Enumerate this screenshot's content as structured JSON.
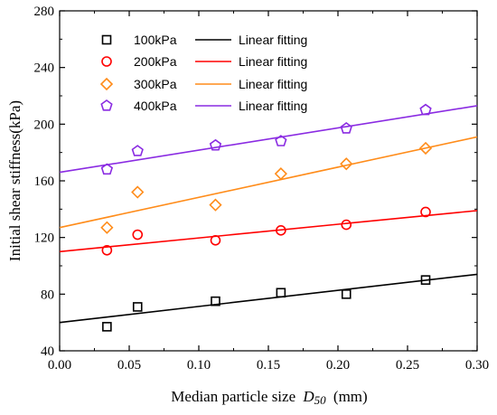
{
  "chart_data": {
    "type": "scatter",
    "title": "",
    "xlabel": "Median particle size",
    "xlabel_symbol": "D",
    "xlabel_subscript": "50",
    "xlabel_unit": "(mm)",
    "ylabel": "Initial shear stiffness(kPa)",
    "xlim": [
      0.0,
      0.3
    ],
    "ylim": [
      40,
      280
    ],
    "x_ticks": [
      "0.00",
      "0.05",
      "0.10",
      "0.15",
      "0.20",
      "0.25",
      "0.30"
    ],
    "y_ticks": [
      "40",
      "80",
      "120",
      "160",
      "200",
      "240",
      "280"
    ],
    "grid": false,
    "legend_position": "top-left",
    "series": [
      {
        "name": "100kPa",
        "fit_label": "Linear fitting",
        "marker": "square",
        "color": "#000000",
        "x": [
          0.034,
          0.056,
          0.112,
          0.159,
          0.206,
          0.263
        ],
        "y": [
          57,
          71,
          75,
          81,
          80,
          90
        ],
        "fit": {
          "intercept": 60,
          "end_value": 94
        }
      },
      {
        "name": "200kPa",
        "fit_label": "Linear fitting",
        "marker": "circle",
        "color": "#ff0000",
        "x": [
          0.034,
          0.056,
          0.112,
          0.159,
          0.206,
          0.263
        ],
        "y": [
          111,
          122,
          118,
          125,
          129,
          138
        ],
        "fit": {
          "intercept": 110,
          "end_value": 139
        }
      },
      {
        "name": "300kPa",
        "fit_label": "Linear fitting",
        "marker": "diamond",
        "color": "#ff8c1a",
        "x": [
          0.034,
          0.056,
          0.112,
          0.159,
          0.206,
          0.263
        ],
        "y": [
          127,
          152,
          143,
          165,
          172,
          183
        ],
        "fit": {
          "intercept": 127,
          "end_value": 191
        }
      },
      {
        "name": "400kPa",
        "fit_label": "Linear fitting",
        "marker": "pentagon",
        "color": "#8a2be2",
        "x": [
          0.034,
          0.056,
          0.112,
          0.159,
          0.206,
          0.263
        ],
        "y": [
          168,
          181,
          185,
          188,
          197,
          210
        ],
        "fit": {
          "intercept": 166,
          "end_value": 213
        }
      }
    ]
  }
}
